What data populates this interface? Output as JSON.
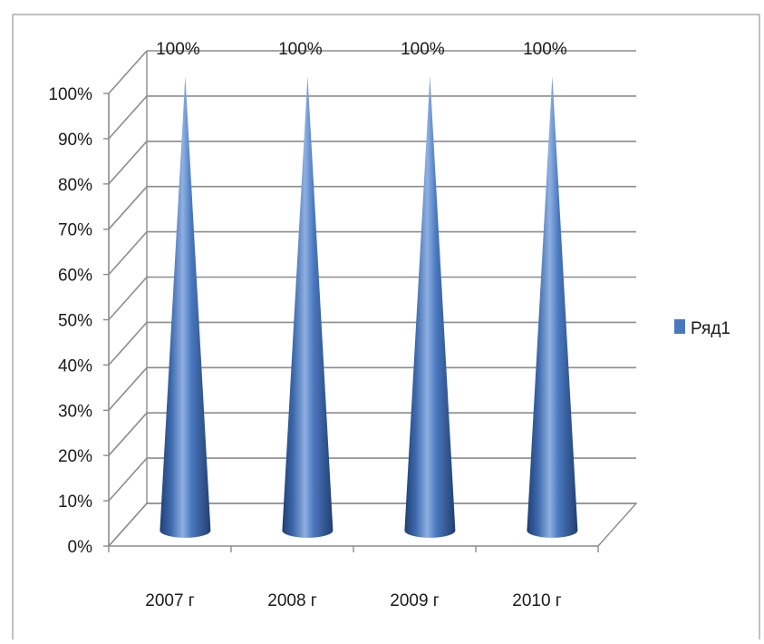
{
  "chart_data": {
    "type": "bar",
    "shape": "cone",
    "categories": [
      "2007 г",
      "2008 г",
      "2009 г",
      "2010 г"
    ],
    "series": [
      {
        "name": "Ряд1",
        "values": [
          100,
          100,
          100,
          100
        ]
      }
    ],
    "data_labels": [
      "100%",
      "100%",
      "100%",
      "100%"
    ],
    "y_ticks": [
      "0%",
      "10%",
      "20%",
      "30%",
      "40%",
      "50%",
      "60%",
      "70%",
      "80%",
      "90%",
      "100%"
    ],
    "ylim": [
      0,
      100
    ],
    "y_unit": "%",
    "grid": true,
    "legend": {
      "position": "right",
      "entries": [
        "Ряд1"
      ]
    },
    "colors": {
      "series": "#4a78bf",
      "series_dark": "#1f3f73",
      "series_light": "#8fb0e2",
      "grid": "#8c8c8c"
    },
    "title": "",
    "xlabel": "",
    "ylabel": ""
  }
}
